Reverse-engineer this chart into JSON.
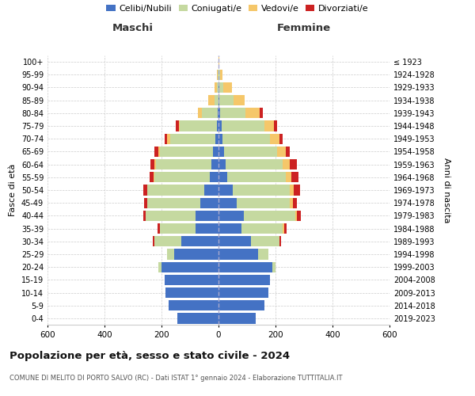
{
  "age_groups": [
    "0-4",
    "5-9",
    "10-14",
    "15-19",
    "20-24",
    "25-29",
    "30-34",
    "35-39",
    "40-44",
    "45-49",
    "50-54",
    "55-59",
    "60-64",
    "65-69",
    "70-74",
    "75-79",
    "80-84",
    "85-89",
    "90-94",
    "95-99",
    "100+"
  ],
  "birth_years": [
    "2019-2023",
    "2014-2018",
    "2009-2013",
    "2004-2008",
    "1999-2003",
    "1994-1998",
    "1989-1993",
    "1984-1988",
    "1979-1983",
    "1974-1978",
    "1969-1973",
    "1964-1968",
    "1959-1963",
    "1954-1958",
    "1949-1953",
    "1944-1948",
    "1939-1943",
    "1934-1938",
    "1929-1933",
    "1924-1928",
    "≤ 1923"
  ],
  "colors": {
    "celibi": "#4472c4",
    "coniugati": "#c5d9a0",
    "vedovi": "#f5c76a",
    "divorziati": "#cc2222"
  },
  "males": {
    "celibi": [
      145,
      175,
      185,
      190,
      200,
      155,
      130,
      80,
      80,
      65,
      50,
      30,
      25,
      20,
      10,
      5,
      2,
      0,
      0,
      0,
      0
    ],
    "coniugati": [
      0,
      0,
      0,
      0,
      10,
      25,
      95,
      125,
      175,
      185,
      200,
      195,
      195,
      185,
      160,
      130,
      55,
      15,
      5,
      2,
      0
    ],
    "vedovi": [
      0,
      0,
      0,
      0,
      0,
      0,
      0,
      0,
      0,
      0,
      0,
      2,
      5,
      5,
      10,
      5,
      15,
      20,
      10,
      3,
      0
    ],
    "divorziati": [
      0,
      0,
      0,
      0,
      0,
      0,
      5,
      10,
      10,
      10,
      15,
      15,
      15,
      15,
      10,
      10,
      0,
      0,
      0,
      0,
      0
    ]
  },
  "females": {
    "nubili": [
      130,
      160,
      175,
      180,
      190,
      140,
      115,
      80,
      90,
      65,
      50,
      30,
      25,
      20,
      15,
      10,
      5,
      2,
      2,
      0,
      0
    ],
    "coniugate": [
      0,
      0,
      0,
      0,
      10,
      35,
      100,
      145,
      180,
      185,
      200,
      205,
      200,
      185,
      165,
      150,
      90,
      50,
      15,
      5,
      0
    ],
    "vedove": [
      0,
      0,
      0,
      0,
      0,
      0,
      0,
      5,
      5,
      10,
      15,
      20,
      25,
      30,
      35,
      35,
      50,
      40,
      30,
      10,
      2
    ],
    "divorziate": [
      0,
      0,
      0,
      0,
      0,
      0,
      5,
      10,
      15,
      15,
      20,
      25,
      25,
      15,
      10,
      10,
      10,
      0,
      0,
      0,
      0
    ]
  },
  "title": "Popolazione per età, sesso e stato civile - 2024",
  "subtitle": "COMUNE DI MELITO DI PORTO SALVO (RC) - Dati ISTAT 1° gennaio 2024 - Elaborazione TUTTITALIA.IT",
  "xlabel_left": "Maschi",
  "xlabel_right": "Femmine",
  "ylabel_left": "Fasce di età",
  "ylabel_right": "Anni di nascita",
  "xlim": 600,
  "legend_labels": [
    "Celibi/Nubili",
    "Coniugati/e",
    "Vedovi/e",
    "Divorziati/e"
  ],
  "bg_color": "#ffffff",
  "grid_color": "#cccccc"
}
